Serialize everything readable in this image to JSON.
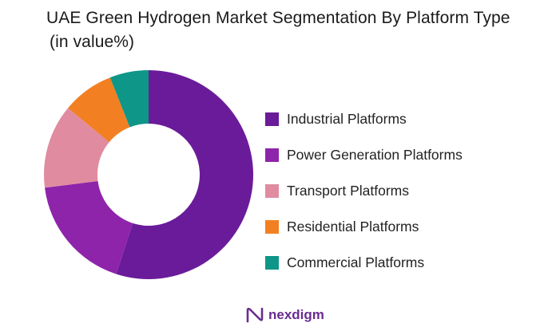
{
  "title_line1": "UAE Green Hydrogen Market Segmentation By Platform Type",
  "title_line2": "(in value%)",
  "brand": {
    "name": "nexdigm",
    "icon": "nexdigm-logo-icon",
    "color": "#6a2c91"
  },
  "chart_data": {
    "type": "pie",
    "style": "donut",
    "title": "UAE Green Hydrogen Market Segmentation By Platform Type (in value%)",
    "legend_position": "right",
    "categories": [
      "Industrial Platforms",
      "Power Generation Platforms",
      "Transport Platforms",
      "Residential Platforms",
      "Commercial Platforms"
    ],
    "values": [
      55,
      18,
      13,
      8,
      6
    ],
    "colors": [
      "#6a1b9a",
      "#8e24aa",
      "#e08ba0",
      "#f28022",
      "#0e9688"
    ]
  }
}
